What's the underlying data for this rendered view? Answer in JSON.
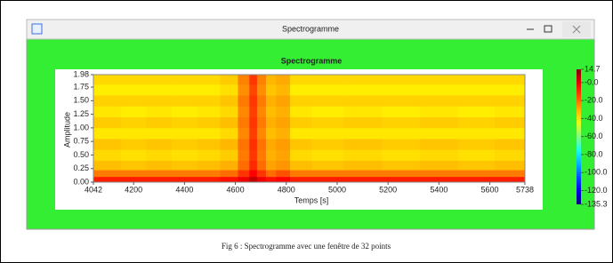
{
  "window": {
    "title": "Spectrogramme"
  },
  "caption": "Fig 6 : Spectrogramme avec une fenêtre de 32 points",
  "chart_data": {
    "type": "heatmap",
    "title": "Spectrogramme",
    "x_label": "Temps [s]",
    "y_label": "Amplitude",
    "xlim": [
      4042,
      5738
    ],
    "xticks": [
      4042,
      4200,
      4400,
      4600,
      4800,
      5000,
      5200,
      5400,
      5600,
      5738
    ],
    "ylim": [
      0,
      1.98
    ],
    "yticks": [
      {
        "value": 0,
        "label": "0.00"
      },
      {
        "value": 0.25,
        "label": "0.25"
      },
      {
        "value": 0.5,
        "label": "0.50"
      },
      {
        "value": 0.75,
        "label": "0.75"
      },
      {
        "value": 1,
        "label": "1.00"
      },
      {
        "value": 1.25,
        "label": "1.25"
      },
      {
        "value": 1.5,
        "label": "1.50"
      },
      {
        "value": 1.75,
        "label": "1.75"
      },
      {
        "value": 1.98,
        "label": "1.98"
      }
    ],
    "clim": [
      -135.3,
      14.7
    ],
    "cticks": [
      14.7,
      {
        "value": 0,
        "label": "-0.0"
      },
      {
        "value": -20,
        "label": "-20.0"
      },
      {
        "value": -40,
        "label": "-40.0"
      },
      {
        "value": -60,
        "label": "-60.0"
      },
      {
        "value": -80,
        "label": "-80.0"
      },
      {
        "value": -100,
        "label": "-100.0"
      },
      {
        "value": -120,
        "label": "-120.0"
      },
      -135.3
    ],
    "x": [
      4100,
      4200,
      4300,
      4400,
      4500,
      4580,
      4640,
      4670,
      4700,
      4740,
      4780,
      4850,
      4950,
      5100,
      5250,
      5400,
      5550,
      5690
    ],
    "y": [
      0.05,
      0.15,
      0.3,
      0.5,
      0.7,
      0.9,
      1.1,
      1.3,
      1.5,
      1.7,
      1.9
    ],
    "z": [
      [
        -8,
        -8,
        -8,
        -8,
        -8,
        -6,
        -2,
        5,
        -2,
        -6,
        -4,
        -8,
        -8,
        -8,
        -8,
        -8,
        -8,
        -8
      ],
      [
        -22,
        -22,
        -22,
        -22,
        -22,
        -20,
        -12,
        -4,
        -12,
        -20,
        -16,
        -22,
        -22,
        -22,
        -22,
        -22,
        -22,
        -22
      ],
      [
        -32,
        -33,
        -32,
        -33,
        -32,
        -30,
        -20,
        -10,
        -20,
        -28,
        -26,
        -32,
        -33,
        -32,
        -33,
        -32,
        -33,
        -32
      ],
      [
        -36,
        -37,
        -36,
        -37,
        -36,
        -34,
        -22,
        -12,
        -22,
        -30,
        -28,
        -36,
        -37,
        -36,
        -37,
        -36,
        -37,
        -36
      ],
      [
        -33,
        -34,
        -33,
        -34,
        -33,
        -31,
        -21,
        -11,
        -21,
        -29,
        -27,
        -33,
        -34,
        -33,
        -34,
        -33,
        -34,
        -33
      ],
      [
        -38,
        -38,
        -38,
        -38,
        -38,
        -36,
        -24,
        -13,
        -24,
        -32,
        -30,
        -38,
        -38,
        -38,
        -38,
        -38,
        -38,
        -38
      ],
      [
        -34,
        -35,
        -34,
        -35,
        -34,
        -32,
        -22,
        -12,
        -22,
        -30,
        -28,
        -34,
        -35,
        -34,
        -35,
        -34,
        -35,
        -34
      ],
      [
        -38,
        -39,
        -38,
        -39,
        -38,
        -36,
        -24,
        -13,
        -24,
        -32,
        -30,
        -38,
        -39,
        -38,
        -39,
        -38,
        -39,
        -38
      ],
      [
        -35,
        -35,
        -35,
        -35,
        -35,
        -33,
        -22,
        -12,
        -22,
        -30,
        -28,
        -35,
        -35,
        -35,
        -35,
        -35,
        -35,
        -35
      ],
      [
        -39,
        -39,
        -39,
        -39,
        -39,
        -37,
        -25,
        -14,
        -25,
        -33,
        -31,
        -39,
        -39,
        -39,
        -39,
        -39,
        -39,
        -39
      ],
      [
        -36,
        -36,
        -36,
        -36,
        -36,
        -34,
        -23,
        -12,
        -23,
        -31,
        -29,
        -36,
        -36,
        -36,
        -36,
        -36,
        -36,
        -36
      ]
    ]
  }
}
